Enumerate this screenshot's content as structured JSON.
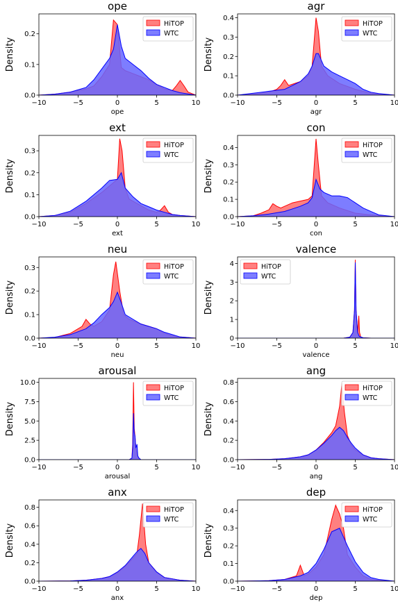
{
  "colors": {
    "hitop_fill": "#ff6a6a",
    "hitop_edge": "#ff0000",
    "wtc_fill": "#6666ff",
    "wtc_edge": "#0000ff"
  },
  "chart_data": [
    {
      "type": "area",
      "title": "ope",
      "xlabel": "ope",
      "ylabel": "Density",
      "xlim": [
        -10,
        10
      ],
      "ylim": [
        0,
        0.265
      ],
      "xticks": [
        "−10",
        "−5",
        "0",
        "5",
        "10"
      ],
      "yticks": [
        0,
        0.1,
        0.2
      ],
      "ytick_labels": [
        "0.0",
        "0.1",
        "0.2"
      ],
      "legend": "top-right",
      "series": [
        {
          "name": "HiTOP",
          "x": [
            -10,
            -8,
            -6,
            -4,
            -3,
            -2,
            -1,
            -0.5,
            0,
            0.5,
            1,
            2,
            3,
            4,
            5,
            6,
            7,
            7.5,
            8,
            8.5,
            9,
            10
          ],
          "y": [
            0,
            0.003,
            0.01,
            0.02,
            0.03,
            0.06,
            0.1,
            0.245,
            0.23,
            0.09,
            0.08,
            0.07,
            0.06,
            0.05,
            0.035,
            0.02,
            0.015,
            0.03,
            0.048,
            0.03,
            0.01,
            0
          ]
        },
        {
          "name": "WTC",
          "x": [
            -10,
            -8,
            -6,
            -4,
            -3,
            -2,
            -1,
            -0.5,
            0,
            0.5,
            1,
            2,
            3,
            4,
            5,
            6,
            7,
            8,
            9,
            10
          ],
          "y": [
            0,
            0.003,
            0.01,
            0.025,
            0.05,
            0.085,
            0.12,
            0.15,
            0.23,
            0.16,
            0.12,
            0.1,
            0.08,
            0.055,
            0.035,
            0.025,
            0.015,
            0.008,
            0.004,
            0
          ]
        }
      ]
    },
    {
      "type": "area",
      "title": "agr",
      "xlabel": "agr",
      "ylabel": "Density",
      "xlim": [
        -10,
        10
      ],
      "ylim": [
        0,
        0.42
      ],
      "xticks": [
        "−10",
        "−5",
        "0",
        "5",
        "10"
      ],
      "yticks": [
        0,
        0.1,
        0.2,
        0.3,
        0.4
      ],
      "ytick_labels": [
        "0.0",
        "0.1",
        "0.2",
        "0.3",
        "0.4"
      ],
      "legend": "top-right",
      "series": [
        {
          "name": "HiTOP",
          "x": [
            -10,
            -8,
            -6,
            -5,
            -4.5,
            -4,
            -3.5,
            -2,
            -1,
            -0.5,
            0,
            0.3,
            0.7,
            1.5,
            3,
            5,
            7,
            10
          ],
          "y": [
            0,
            0.005,
            0.015,
            0.03,
            0.05,
            0.08,
            0.05,
            0.07,
            0.1,
            0.15,
            0.4,
            0.33,
            0.15,
            0.1,
            0.06,
            0.03,
            0.01,
            0
          ]
        },
        {
          "name": "WTC",
          "x": [
            -10,
            -8,
            -6,
            -4,
            -2,
            -1,
            -0.5,
            0,
            0.3,
            1,
            2,
            3,
            4,
            5,
            6,
            7,
            8,
            10
          ],
          "y": [
            0,
            0.01,
            0.02,
            0.03,
            0.07,
            0.11,
            0.15,
            0.215,
            0.215,
            0.15,
            0.12,
            0.1,
            0.08,
            0.06,
            0.03,
            0.015,
            0.008,
            0
          ]
        }
      ]
    },
    {
      "type": "area",
      "title": "ext",
      "xlabel": "ext",
      "ylabel": "Density",
      "xlim": [
        -10,
        10
      ],
      "ylim": [
        0,
        0.37
      ],
      "xticks": [
        "−10",
        "−5",
        "0",
        "5",
        "10"
      ],
      "yticks": [
        0,
        0.1,
        0.2,
        0.3
      ],
      "ytick_labels": [
        "0.0",
        "0.1",
        "0.2",
        "0.3"
      ],
      "legend": "top-right",
      "series": [
        {
          "name": "HiTOP",
          "x": [
            -10,
            -8,
            -6,
            -4,
            -2,
            -1,
            0,
            0.3,
            0.6,
            1,
            1.5,
            3,
            4,
            5,
            5.5,
            6,
            6.5,
            7,
            8,
            10
          ],
          "y": [
            0,
            0.005,
            0.02,
            0.06,
            0.11,
            0.14,
            0.17,
            0.355,
            0.3,
            0.13,
            0.08,
            0.05,
            0.03,
            0.02,
            0.03,
            0.05,
            0.02,
            0.01,
            0.005,
            0
          ]
        },
        {
          "name": "WTC",
          "x": [
            -10,
            -8,
            -6,
            -4,
            -3,
            -2,
            -1,
            0,
            0.5,
            1,
            2,
            3,
            4,
            5,
            6,
            7,
            8,
            10
          ],
          "y": [
            0,
            0.005,
            0.025,
            0.07,
            0.1,
            0.13,
            0.165,
            0.17,
            0.2,
            0.13,
            0.09,
            0.06,
            0.045,
            0.03,
            0.02,
            0.01,
            0.005,
            0
          ]
        }
      ]
    },
    {
      "type": "area",
      "title": "con",
      "xlabel": "con",
      "ylabel": "Density",
      "xlim": [
        -10,
        10
      ],
      "ylim": [
        0,
        0.47
      ],
      "xticks": [
        "−10",
        "−5",
        "0",
        "5",
        "10"
      ],
      "yticks": [
        0,
        0.1,
        0.2,
        0.3,
        0.4
      ],
      "ytick_labels": [
        "0.0",
        "0.1",
        "0.2",
        "0.3",
        "0.4"
      ],
      "legend": "top-right",
      "series": [
        {
          "name": "HiTOP",
          "x": [
            -10,
            -8,
            -7,
            -6,
            -5.5,
            -5,
            -4.5,
            -4,
            -3,
            -2,
            -1,
            -0.5,
            0,
            0.3,
            0.7,
            1.5,
            3,
            5,
            7,
            10
          ],
          "y": [
            0,
            0.005,
            0.02,
            0.04,
            0.075,
            0.06,
            0.05,
            0.06,
            0.08,
            0.09,
            0.1,
            0.12,
            0.45,
            0.3,
            0.12,
            0.08,
            0.05,
            0.02,
            0.01,
            0
          ]
        },
        {
          "name": "WTC",
          "x": [
            -10,
            -8,
            -6,
            -4,
            -3,
            -2,
            -1,
            -0.5,
            0,
            0.5,
            1,
            2,
            3,
            4,
            5,
            6,
            7,
            8,
            10
          ],
          "y": [
            0,
            0.005,
            0.015,
            0.03,
            0.045,
            0.06,
            0.08,
            0.11,
            0.215,
            0.16,
            0.14,
            0.12,
            0.12,
            0.11,
            0.08,
            0.05,
            0.03,
            0.01,
            0
          ]
        }
      ]
    },
    {
      "type": "area",
      "title": "neu",
      "xlabel": "neu",
      "ylabel": "Density",
      "xlim": [
        -10,
        10
      ],
      "ylim": [
        0,
        0.345
      ],
      "xticks": [
        "−10",
        "−5",
        "0",
        "5",
        "10"
      ],
      "yticks": [
        0,
        0.1,
        0.2,
        0.3
      ],
      "ytick_labels": [
        "0.0",
        "0.1",
        "0.2",
        "0.3"
      ],
      "legend": "top-right",
      "series": [
        {
          "name": "HiTOP",
          "x": [
            -10,
            -8,
            -6,
            -4.5,
            -4,
            -3.5,
            -3,
            -2,
            -1,
            -0.5,
            -0.2,
            0.3,
            0.8,
            1.5,
            3,
            4,
            5,
            6,
            7,
            8,
            10
          ],
          "y": [
            0,
            0.003,
            0.02,
            0.05,
            0.08,
            0.06,
            0.05,
            0.07,
            0.12,
            0.27,
            0.325,
            0.2,
            0.1,
            0.08,
            0.06,
            0.05,
            0.04,
            0.02,
            0.01,
            0.005,
            0
          ]
        },
        {
          "name": "WTC",
          "x": [
            -10,
            -8,
            -6,
            -4,
            -3,
            -2,
            -1,
            -0.5,
            0,
            0.5,
            1,
            2,
            3,
            4,
            5,
            6,
            7,
            8,
            10
          ],
          "y": [
            0,
            0.004,
            0.015,
            0.04,
            0.065,
            0.1,
            0.13,
            0.155,
            0.195,
            0.15,
            0.1,
            0.08,
            0.06,
            0.05,
            0.04,
            0.025,
            0.015,
            0.005,
            0
          ]
        }
      ]
    },
    {
      "type": "area",
      "title": "valence",
      "xlabel": "valence",
      "ylabel": "Density",
      "xlim": [
        -10,
        10
      ],
      "ylim": [
        0,
        4.35
      ],
      "xticks": [
        "−10",
        "−5",
        "0",
        "5",
        "10"
      ],
      "yticks": [
        0,
        1,
        2,
        3,
        4
      ],
      "ytick_labels": [
        "0",
        "1",
        "2",
        "3",
        "4"
      ],
      "legend": "top-left",
      "series": [
        {
          "name": "HiTOP",
          "x": [
            -10,
            3.5,
            4.3,
            4.7,
            4.9,
            5,
            5.1,
            5.3,
            5.45,
            5.55,
            5.7,
            6,
            7,
            10
          ],
          "y": [
            0,
            0,
            0.05,
            0.3,
            1.5,
            4.2,
            1.5,
            0.3,
            1.2,
            0.3,
            0.05,
            0.02,
            0,
            0
          ]
        },
        {
          "name": "WTC",
          "x": [
            -10,
            3.5,
            4.3,
            4.7,
            4.9,
            5,
            5.1,
            5.3,
            5.5,
            6,
            7,
            10
          ],
          "y": [
            0,
            0,
            0.05,
            0.3,
            1.5,
            4.05,
            1.5,
            0.3,
            0.1,
            0.02,
            0,
            0
          ]
        }
      ]
    },
    {
      "type": "area",
      "title": "arousal",
      "xlabel": "arousal",
      "ylabel": "Density",
      "xlim": [
        -10,
        10
      ],
      "ylim": [
        0,
        10.5
      ],
      "xticks": [
        "−10",
        "−5",
        "0",
        "5",
        "10"
      ],
      "yticks": [
        0,
        2.5,
        5,
        7.5,
        10
      ],
      "ytick_labels": [
        "0.0",
        "2.5",
        "5.0",
        "7.5",
        "10.0"
      ],
      "legend": "top-right",
      "series": [
        {
          "name": "HiTOP",
          "x": [
            -10,
            1.5,
            1.85,
            1.95,
            2.05,
            2.15,
            2.25,
            2.35,
            2.45,
            2.55,
            2.7,
            3,
            10
          ],
          "y": [
            0,
            0,
            0.2,
            2,
            10,
            4,
            3,
            1.5,
            1,
            0.5,
            0.2,
            0,
            0
          ]
        },
        {
          "name": "WTC",
          "x": [
            -10,
            1.5,
            1.85,
            1.95,
            2.05,
            2.15,
            2.25,
            2.35,
            2.5,
            2.6,
            2.75,
            3,
            10
          ],
          "y": [
            0,
            0,
            0.2,
            1.5,
            6,
            3.5,
            3,
            1.5,
            2,
            0.5,
            0.2,
            0,
            0
          ]
        }
      ]
    },
    {
      "type": "area",
      "title": "ang",
      "xlabel": "ang",
      "ylabel": "Density",
      "xlim": [
        -10,
        10
      ],
      "ylim": [
        0,
        0.84
      ],
      "xticks": [
        "−10",
        "−5",
        "0",
        "5",
        "10"
      ],
      "yticks": [
        0,
        0.2,
        0.4,
        0.6,
        0.8
      ],
      "ytick_labels": [
        "0.0",
        "0.2",
        "0.4",
        "0.6",
        "0.8"
      ],
      "legend": "top-right",
      "series": [
        {
          "name": "HiTOP",
          "x": [
            -10,
            -6,
            -4,
            -2,
            -1,
            0,
            1,
            2,
            2.5,
            3,
            3.3,
            3.6,
            4,
            4.5,
            5,
            6,
            7,
            8,
            10
          ],
          "y": [
            0,
            0.003,
            0.01,
            0.03,
            0.05,
            0.1,
            0.18,
            0.28,
            0.35,
            0.55,
            0.79,
            0.5,
            0.25,
            0.15,
            0.1,
            0.05,
            0.02,
            0.01,
            0
          ]
        },
        {
          "name": "WTC",
          "x": [
            -10,
            -6,
            -4,
            -2,
            -1,
            0,
            1,
            2,
            2.5,
            3,
            3.5,
            4,
            4.5,
            5,
            6,
            7,
            8,
            10
          ],
          "y": [
            0,
            0.003,
            0.01,
            0.03,
            0.05,
            0.1,
            0.17,
            0.25,
            0.3,
            0.335,
            0.3,
            0.23,
            0.17,
            0.12,
            0.05,
            0.02,
            0.01,
            0
          ]
        }
      ]
    },
    {
      "type": "area",
      "title": "anx",
      "xlabel": "anx",
      "ylabel": "Density",
      "xlim": [
        -10,
        10
      ],
      "ylim": [
        0,
        0.88
      ],
      "xticks": [
        "−10",
        "−5",
        "0",
        "5",
        "10"
      ],
      "yticks": [
        0,
        0.2,
        0.4,
        0.6,
        0.8
      ],
      "ytick_labels": [
        "0.0",
        "0.2",
        "0.4",
        "0.6",
        "0.8"
      ],
      "legend": "top-right",
      "series": [
        {
          "name": "HiTOP",
          "x": [
            -10,
            -6,
            -4,
            -2,
            -1,
            0,
            1,
            2,
            2.5,
            2.8,
            3.2,
            3.6,
            4,
            5,
            6,
            8,
            10
          ],
          "y": [
            0,
            0.003,
            0.01,
            0.03,
            0.05,
            0.09,
            0.16,
            0.25,
            0.3,
            0.5,
            0.84,
            0.4,
            0.2,
            0.1,
            0.04,
            0.01,
            0
          ]
        },
        {
          "name": "WTC",
          "x": [
            -10,
            -6,
            -4,
            -2,
            -1,
            0,
            1,
            2,
            2.5,
            3,
            3.5,
            4,
            5,
            6,
            8,
            10
          ],
          "y": [
            0,
            0.003,
            0.01,
            0.03,
            0.05,
            0.1,
            0.17,
            0.27,
            0.32,
            0.355,
            0.3,
            0.2,
            0.1,
            0.04,
            0.01,
            0
          ]
        }
      ]
    },
    {
      "type": "area",
      "title": "dep",
      "xlabel": "dep",
      "ylabel": "Density",
      "xlim": [
        -10,
        10
      ],
      "ylim": [
        0,
        0.46
      ],
      "xticks": [
        "−10",
        "−5",
        "0",
        "5",
        "10"
      ],
      "yticks": [
        0,
        0.1,
        0.2,
        0.3,
        0.4
      ],
      "ytick_labels": [
        "0.0",
        "0.1",
        "0.2",
        "0.3",
        "0.4"
      ],
      "legend": "top-right",
      "series": [
        {
          "name": "HiTOP",
          "x": [
            -10,
            -6,
            -4,
            -2.5,
            -2,
            -1.5,
            -1,
            0,
            1,
            2,
            2.5,
            3,
            3.5,
            4,
            5,
            6,
            7,
            8,
            10
          ],
          "y": [
            0,
            0.003,
            0.01,
            0.03,
            0.09,
            0.03,
            0.04,
            0.08,
            0.15,
            0.35,
            0.43,
            0.38,
            0.3,
            0.15,
            0.08,
            0.03,
            0.01,
            0.005,
            0
          ]
        },
        {
          "name": "WTC",
          "x": [
            -10,
            -6,
            -4,
            -2,
            -1,
            0,
            1,
            2,
            2.5,
            3,
            3.5,
            4,
            5,
            6,
            7,
            8,
            10
          ],
          "y": [
            0,
            0.003,
            0.01,
            0.03,
            0.05,
            0.1,
            0.18,
            0.28,
            0.29,
            0.3,
            0.25,
            0.2,
            0.11,
            0.05,
            0.02,
            0.01,
            0
          ]
        }
      ]
    }
  ]
}
